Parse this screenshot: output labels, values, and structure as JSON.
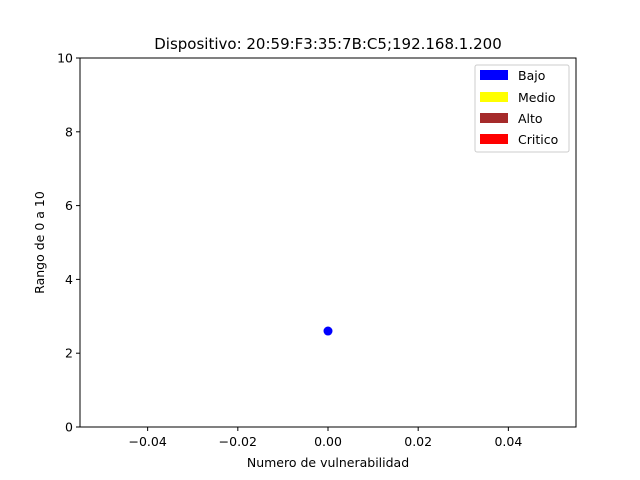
{
  "chart_data": {
    "type": "scatter",
    "title": "Dispositivo: 20:59:F3:35:7B:C5;192.168.1.200",
    "xlabel": "Numero de vulnerabilidad",
    "ylabel": "Rango de 0 a 10",
    "xlim": [
      -0.055,
      0.055
    ],
    "ylim": [
      0,
      10
    ],
    "x_ticks": [
      -0.04,
      -0.02,
      0.0,
      0.02,
      0.04
    ],
    "x_tick_labels": [
      "−0.04",
      "−0.02",
      "0.00",
      "0.02",
      "0.04"
    ],
    "y_ticks": [
      0,
      2,
      4,
      6,
      8,
      10
    ],
    "y_tick_labels": [
      "0",
      "2",
      "4",
      "6",
      "8",
      "10"
    ],
    "grid": false,
    "legend_position": "top-right",
    "legend": [
      {
        "label": "Bajo",
        "color": "#0000ff"
      },
      {
        "label": "Medio",
        "color": "#ffff00"
      },
      {
        "label": "Alto",
        "color": "#a52a2a"
      },
      {
        "label": "Critico",
        "color": "#ff0000"
      }
    ],
    "points": [
      {
        "x": 0.0,
        "y": 2.6,
        "color": "#0000ff"
      }
    ]
  }
}
